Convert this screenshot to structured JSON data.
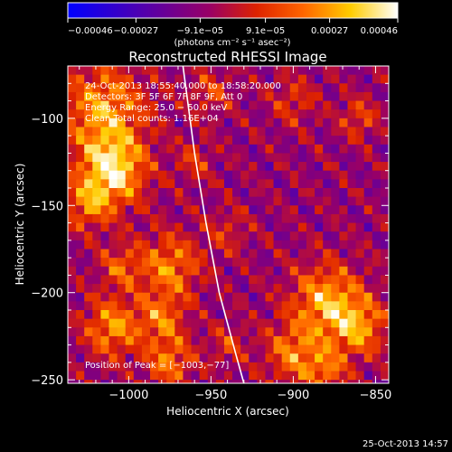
{
  "chart_data": {
    "type": "heatmap",
    "title": "Reconstructed RHESSI Image",
    "xlabel": "Heliocentric X (arcsec)",
    "ylabel": "Heliocentric Y (arcsec)",
    "x_ticks": [
      "−1000",
      "−950",
      "−900",
      "−850"
    ],
    "y_ticks": [
      "−100",
      "−150",
      "−200",
      "−250"
    ],
    "x_tick_values": [
      -1000,
      -950,
      -900,
      -850
    ],
    "y_tick_values": [
      -100,
      -150,
      -200,
      -250
    ],
    "xlim": [
      -1037,
      -842
    ],
    "ylim": [
      -252,
      -70
    ],
    "colorbar": {
      "tick_labels": [
        "−0.00046",
        "−0.00027",
        "−9.1e−05",
        "9.1e−05",
        "0.00027",
        "0.00046"
      ],
      "tick_values": [
        -0.00046,
        -0.00027,
        -9.1e-05,
        9.1e-05,
        0.00027,
        0.00046
      ],
      "unit_label": "(photons cm⁻² s⁻¹ asec⁻²)",
      "range": [
        -0.00046,
        0.00046
      ],
      "colors": [
        "#0000ff",
        "#3300cc",
        "#660099",
        "#990066",
        "#dd2200",
        "#ff6600",
        "#ffcc00",
        "#ffffff"
      ]
    },
    "annotations": [
      "24-Oct-2013 18:55:40.000 to 18:58:20.000",
      "Detectors: 3F 5F 6F 7F 8F 9F, Att 0",
      "Energy Range: 25.0 − 50.0 keV",
      "Clean    Total counts: 1.16E+04"
    ],
    "peak_label": "Position of Peak = [−1003,−77]",
    "timestamp": "25-Oct-2013 14:57",
    "peak_position": [
      -1003,
      -77
    ],
    "sources": [
      {
        "x": -1010,
        "y": -130,
        "r": 14,
        "v": 0.00046
      },
      {
        "x": -1015,
        "y": -95,
        "r": 18,
        "v": 0.00034
      },
      {
        "x": -1025,
        "y": -150,
        "r": 10,
        "v": 0.00025
      },
      {
        "x": -975,
        "y": -185,
        "r": 13,
        "v": 0.0003
      },
      {
        "x": -1005,
        "y": -185,
        "r": 9,
        "v": 0.00022
      },
      {
        "x": -1010,
        "y": -220,
        "r": 12,
        "v": 0.00032
      },
      {
        "x": -980,
        "y": -215,
        "r": 10,
        "v": 0.00026
      },
      {
        "x": -975,
        "y": -240,
        "r": 10,
        "v": 0.00028
      },
      {
        "x": -880,
        "y": -205,
        "r": 15,
        "v": 0.00036
      },
      {
        "x": -860,
        "y": -220,
        "r": 12,
        "v": 0.0003
      },
      {
        "x": -900,
        "y": -235,
        "r": 12,
        "v": 0.00028
      },
      {
        "x": -880,
        "y": -245,
        "r": 9,
        "v": 0.00024
      },
      {
        "x": -950,
        "y": -85,
        "r": 9,
        "v": 0.00018
      },
      {
        "x": -900,
        "y": -90,
        "r": 10,
        "v": 0.00016
      },
      {
        "x": -860,
        "y": -100,
        "r": 8,
        "v": 0.0002
      },
      {
        "x": -960,
        "y": -125,
        "r": 8,
        "v": 0.00016
      },
      {
        "x": -940,
        "y": -165,
        "r": 9,
        "v": 0.00014
      },
      {
        "x": -940,
        "y": -230,
        "r": 8,
        "v": 0.00016
      }
    ],
    "limb_arc": [
      [
        -967,
        -70
      ],
      [
        -960,
        -120
      ],
      [
        -953,
        -160
      ],
      [
        -945,
        -200
      ],
      [
        -935,
        -235
      ],
      [
        -930,
        -252
      ]
    ]
  }
}
